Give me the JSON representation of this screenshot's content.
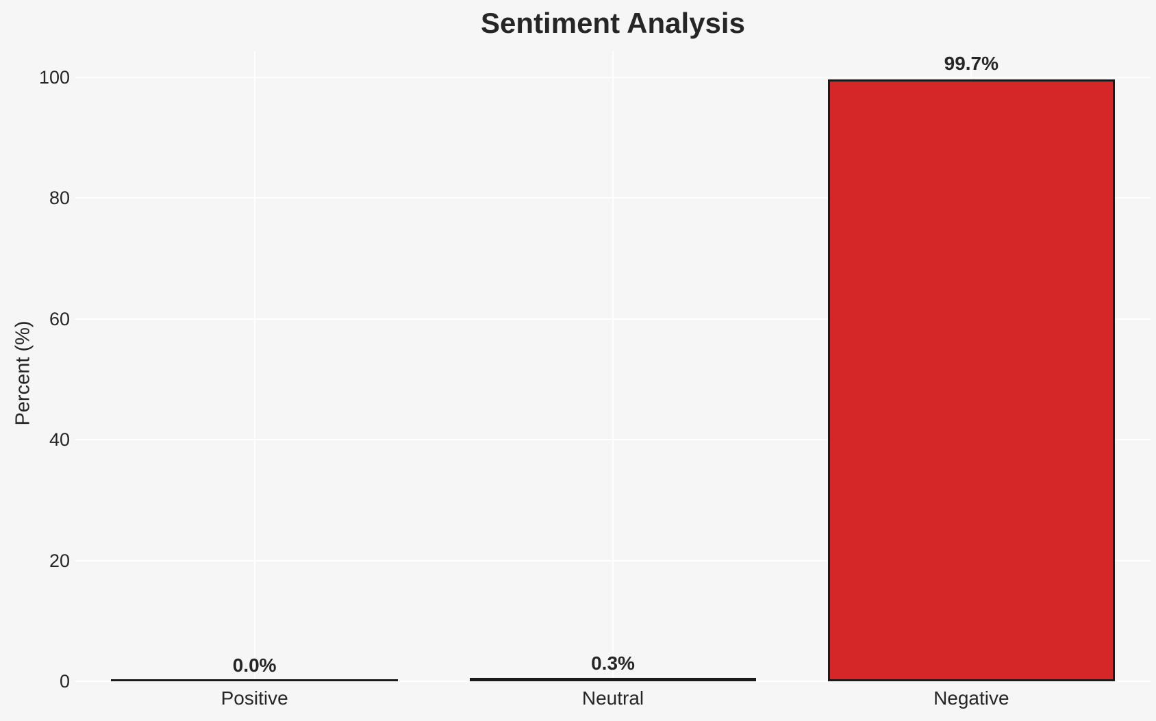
{
  "chart_data": {
    "type": "bar",
    "title": "Sentiment Analysis",
    "xlabel": "",
    "ylabel": "Percent (%)",
    "categories": [
      "Positive",
      "Neutral",
      "Negative"
    ],
    "values": [
      0.0,
      0.3,
      99.7
    ],
    "bar_labels": [
      "0.0%",
      "0.3%",
      "99.7%"
    ],
    "yticks": [
      0,
      20,
      40,
      60,
      80,
      100
    ],
    "ylim": [
      0,
      104
    ],
    "grid": "on",
    "gridline_orientation": "horizontal-and-vertical",
    "legend": "none",
    "colors": {
      "bar_fill": "#d62728",
      "bar_edge": "#1a1a1a",
      "background": "#f6f6f7",
      "gridline": "#ffffff",
      "text": "#262626"
    }
  }
}
